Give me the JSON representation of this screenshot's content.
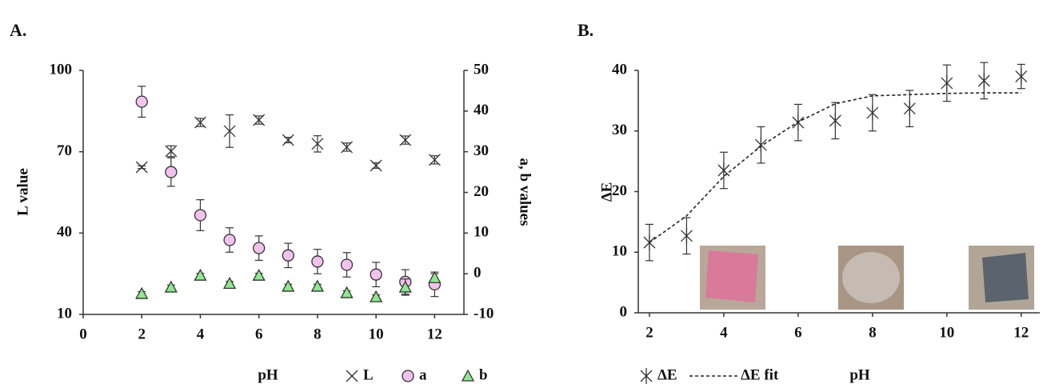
{
  "chart_data": [
    {
      "type": "scatter",
      "panel_label": "A.",
      "x_label": "pH",
      "y_label": "L value",
      "y2_label": "a, b values",
      "x": [
        2,
        3,
        4,
        5,
        6,
        7,
        8,
        9,
        10,
        11,
        12
      ],
      "xlim": [
        0,
        13
      ],
      "xticks": [
        0,
        2,
        4,
        6,
        8,
        10,
        12
      ],
      "ylim": [
        10,
        100
      ],
      "yticks": [
        10,
        40,
        70,
        100
      ],
      "y2lim": [
        -10,
        50
      ],
      "y2ticks": [
        -10,
        0,
        10,
        20,
        30,
        40,
        50
      ],
      "series": [
        {
          "name": "L",
          "marker": "x",
          "color": "#333333",
          "values": [
            64.3,
            70.2,
            80.8,
            77.6,
            81.7,
            74.3,
            72.9,
            71.7,
            64.9,
            74.3,
            67
          ],
          "errors": [
            0.5,
            2,
            1.5,
            6,
            1.5,
            1,
            3,
            1.5,
            1,
            1.5,
            1.5
          ]
        },
        {
          "name": "a",
          "marker": "circle",
          "color": "#f2c2ec",
          "axis": "y2",
          "values": [
            42.3,
            25,
            14.4,
            8.3,
            6.3,
            4.5,
            3,
            2.2,
            -0.2,
            -2,
            -2.6
          ],
          "errors": [
            3.8,
            3.5,
            3.8,
            3,
            3,
            3,
            3,
            3,
            3,
            3,
            3
          ]
        },
        {
          "name": "b",
          "marker": "triangle",
          "color": "#8fe88f",
          "axis": "y2",
          "values": [
            -4.9,
            -3.3,
            -0.4,
            -2.4,
            -0.4,
            -3.1,
            -3.1,
            -4.7,
            -5.7,
            -3.3,
            -1
          ],
          "errors": [
            0.5,
            0.5,
            0.5,
            0.5,
            0.5,
            0.5,
            0.5,
            0.5,
            0.5,
            2,
            1
          ]
        }
      ]
    },
    {
      "type": "scatter",
      "panel_label": "B.",
      "x_label": "pH",
      "y_label": "ΔE",
      "x": [
        2,
        3,
        4,
        5,
        6,
        7,
        8,
        9,
        10,
        11,
        12
      ],
      "xlim": [
        1.7,
        12.5
      ],
      "xticks": [
        2,
        4,
        6,
        8,
        10,
        12
      ],
      "ylim": [
        0,
        40
      ],
      "yticks": [
        0,
        10,
        20,
        30,
        40
      ],
      "series": [
        {
          "name": "ΔE",
          "marker": "asterisk",
          "color": "#333333",
          "values": [
            11.6,
            12.7,
            23.5,
            27.7,
            31.4,
            31.7,
            33,
            33.7,
            37.9,
            38.3,
            39
          ],
          "errors": [
            3,
            3,
            3,
            3,
            3,
            3,
            3,
            3,
            3,
            3,
            2
          ]
        },
        {
          "name": "ΔE  fit",
          "line_style": "dashed",
          "color": "#222222",
          "values": [
            11.6,
            16,
            22.5,
            27.5,
            31.5,
            34.5,
            35.8,
            36,
            36.2,
            36.3,
            36.3
          ]
        }
      ]
    }
  ]
}
